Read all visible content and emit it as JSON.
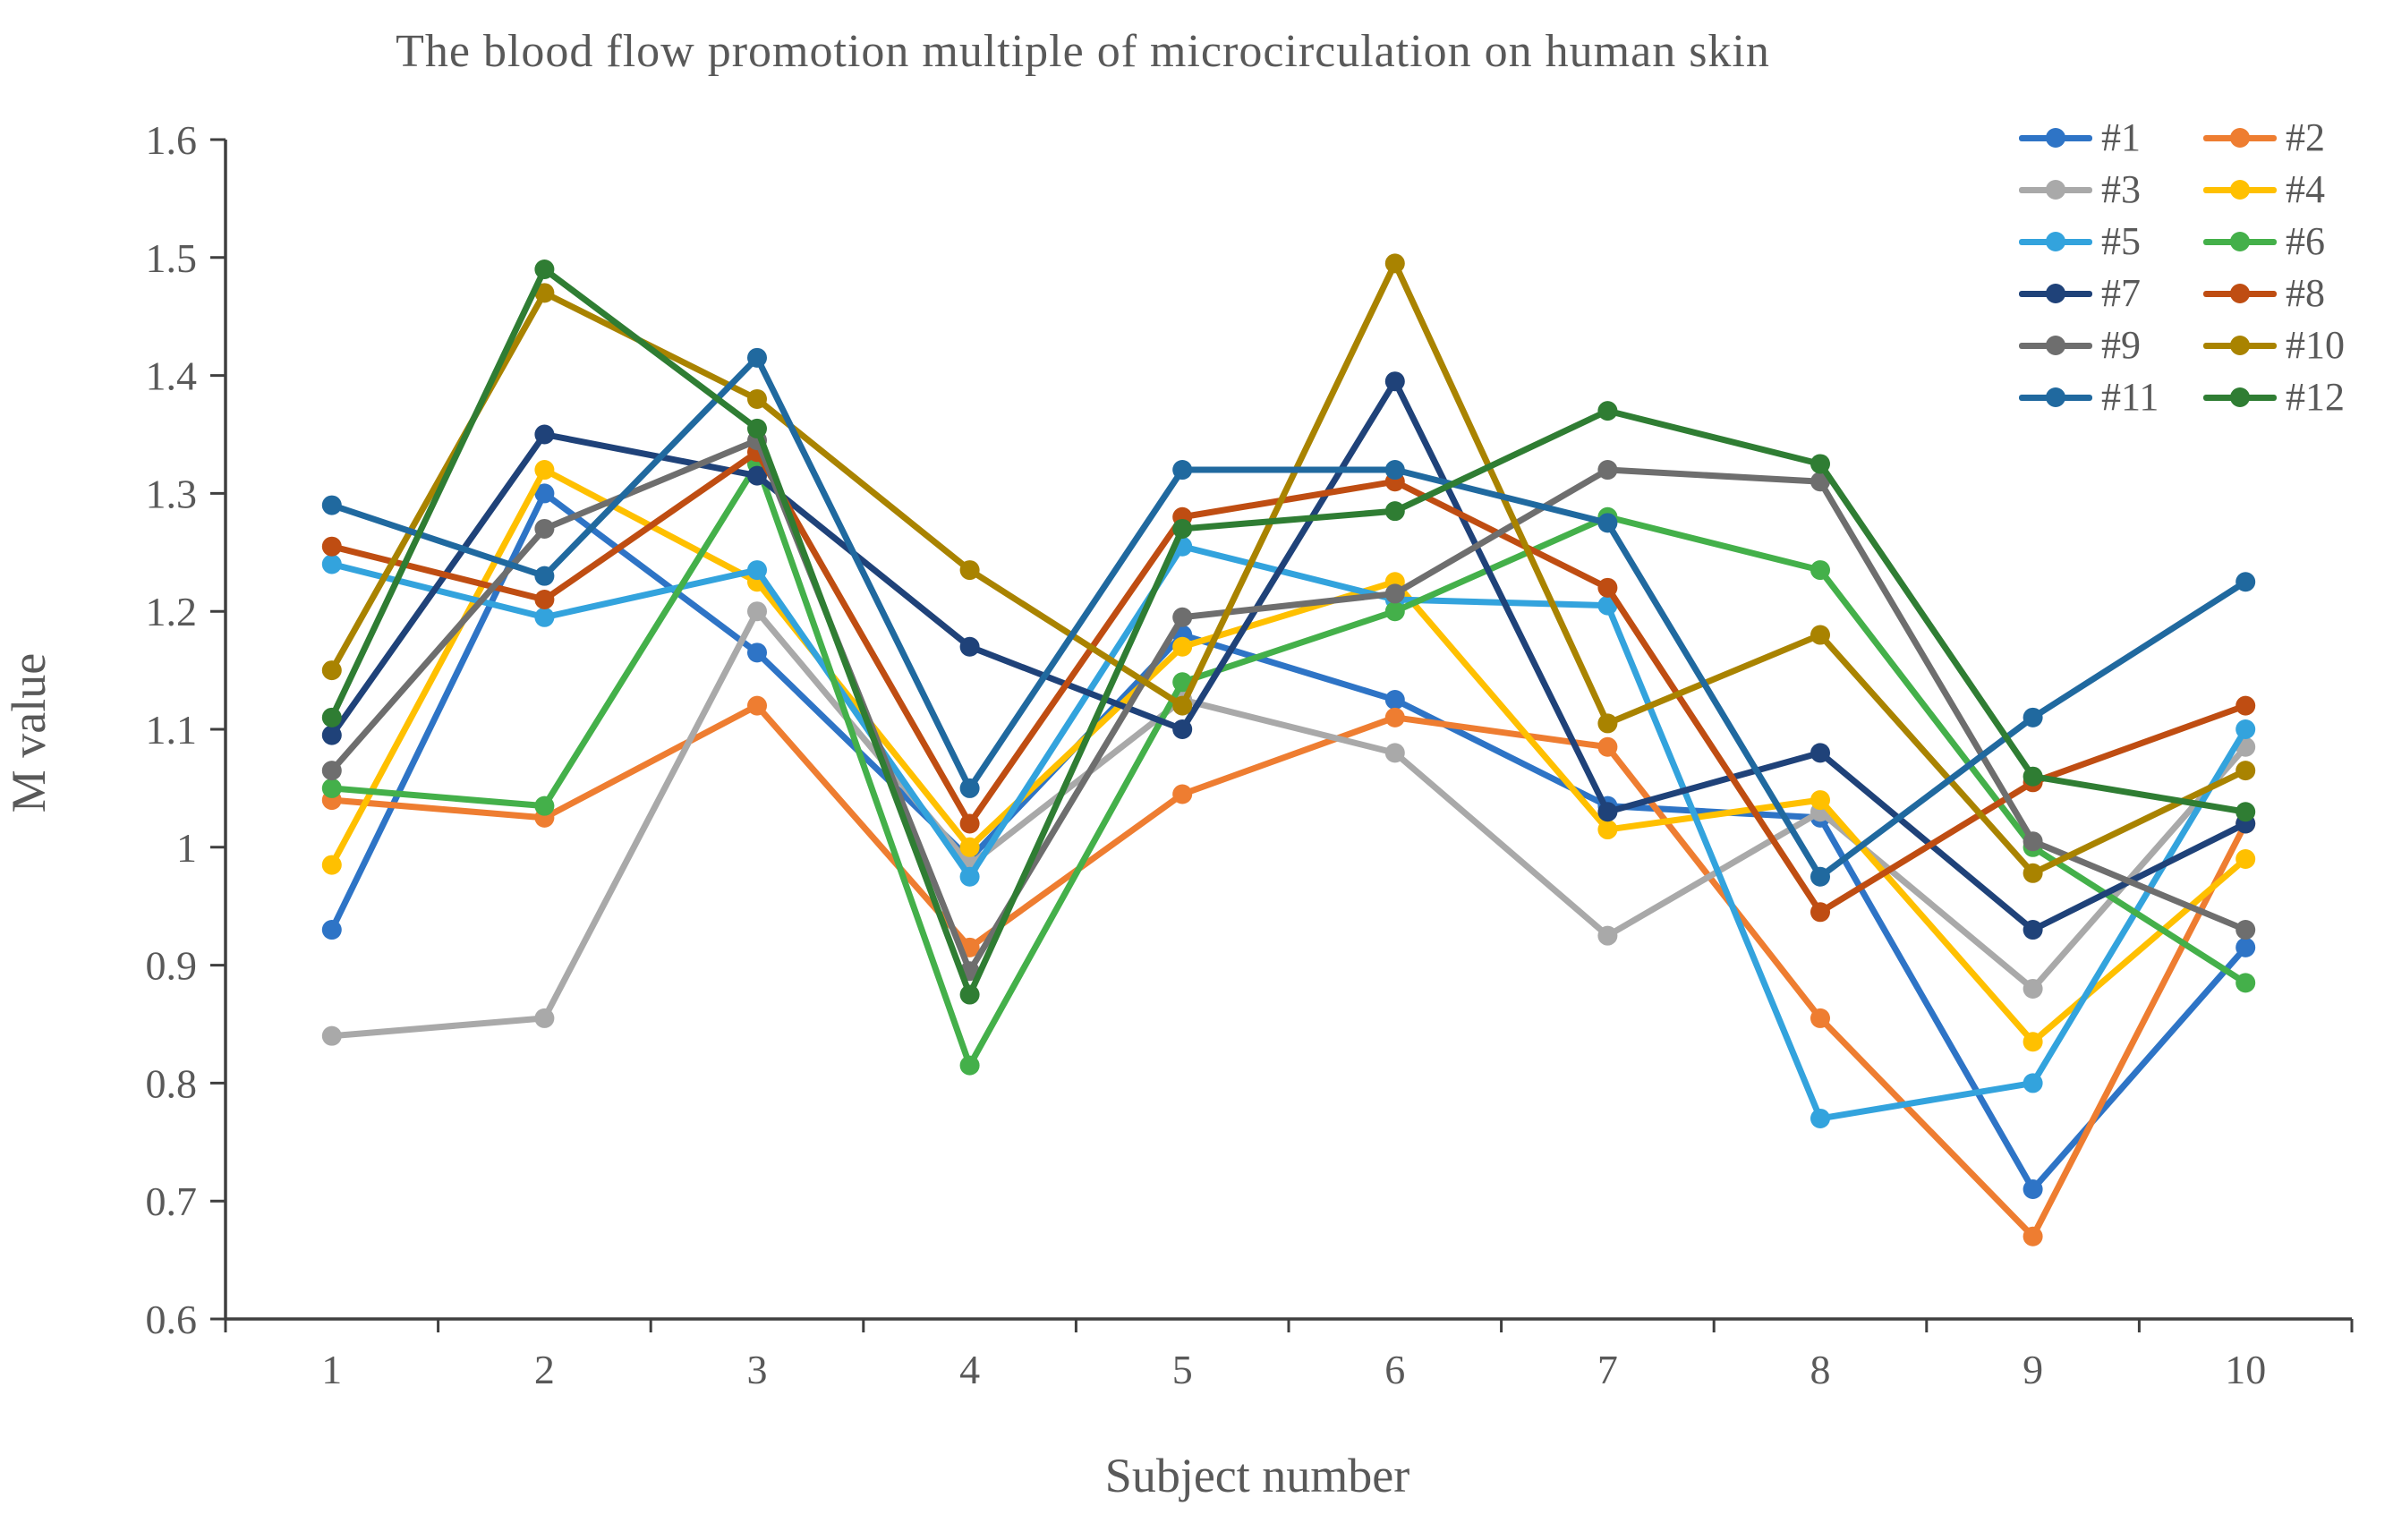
{
  "page": {
    "background": "#ffffff",
    "text_color": "#595959",
    "axis_color": "#3f3f3f"
  },
  "chart_data": {
    "type": "line",
    "title": "The blood flow promotion multiple of microcirculation on human skin",
    "xlabel": "Subject number",
    "ylabel": "M value",
    "categories": [
      1,
      2,
      3,
      4,
      5,
      6,
      7,
      8,
      9,
      10
    ],
    "ylim": [
      0.6,
      1.6
    ],
    "ytick_step": 0.1,
    "grid": false,
    "legend_position": "top-right",
    "marker": "circle",
    "series": [
      {
        "name": "#1",
        "color": "#2e74c6",
        "values": [
          0.93,
          1.3,
          1.165,
          0.99,
          1.18,
          1.125,
          1.035,
          1.025,
          0.71,
          0.915
        ]
      },
      {
        "name": "#2",
        "color": "#ee7d31",
        "values": [
          1.04,
          1.025,
          1.12,
          0.915,
          1.045,
          1.11,
          1.085,
          0.855,
          0.67,
          1.02
        ]
      },
      {
        "name": "#3",
        "color": "#a9a9a9",
        "values": [
          0.84,
          0.855,
          1.2,
          0.985,
          1.125,
          1.08,
          0.925,
          1.03,
          0.88,
          1.085
        ]
      },
      {
        "name": "#4",
        "color": "#ffc000",
        "values": [
          0.985,
          1.32,
          1.225,
          1.0,
          1.17,
          1.225,
          1.015,
          1.04,
          0.835,
          0.99
        ]
      },
      {
        "name": "#5",
        "color": "#33a3dd",
        "values": [
          1.24,
          1.195,
          1.235,
          0.975,
          1.255,
          1.21,
          1.205,
          0.77,
          0.8,
          1.1
        ]
      },
      {
        "name": "#6",
        "color": "#44b04a",
        "values": [
          1.05,
          1.035,
          1.325,
          0.815,
          1.14,
          1.2,
          1.28,
          1.235,
          1.0,
          0.885
        ]
      },
      {
        "name": "#7",
        "color": "#1f4279",
        "values": [
          1.095,
          1.35,
          1.315,
          1.17,
          1.1,
          1.395,
          1.03,
          1.08,
          0.93,
          1.02
        ]
      },
      {
        "name": "#8",
        "color": "#bf4d12",
        "values": [
          1.255,
          1.21,
          1.335,
          1.02,
          1.28,
          1.31,
          1.22,
          0.945,
          1.055,
          1.12
        ]
      },
      {
        "name": "#9",
        "color": "#6e6e6e",
        "values": [
          1.065,
          1.27,
          1.345,
          0.895,
          1.195,
          1.215,
          1.32,
          1.31,
          1.005,
          0.93
        ]
      },
      {
        "name": "#10",
        "color": "#a98300",
        "values": [
          1.15,
          1.47,
          1.38,
          1.235,
          1.12,
          1.495,
          1.105,
          1.18,
          0.978,
          1.065
        ]
      },
      {
        "name": "#11",
        "color": "#20699f",
        "values": [
          1.29,
          1.23,
          1.415,
          1.05,
          1.32,
          1.32,
          1.275,
          0.975,
          1.11,
          1.225
        ]
      },
      {
        "name": "#12",
        "color": "#2f7d33",
        "values": [
          1.11,
          1.49,
          1.355,
          0.875,
          1.27,
          1.285,
          1.37,
          1.325,
          1.06,
          1.03
        ]
      }
    ]
  }
}
